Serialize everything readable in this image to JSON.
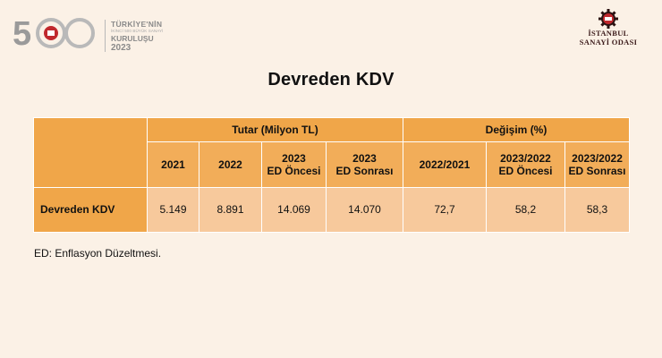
{
  "logo_left": {
    "number": "500",
    "line1": "TÜRKİYE'NİN",
    "line2": "İKİNCİ 500 BÜYÜK SANAYİ",
    "line3": "KURULUŞU",
    "year": "2023",
    "color": "#8a8a8a"
  },
  "logo_right": {
    "mark": "İSO",
    "name_line1": "İSTANBUL",
    "name_line2": "SANAYİ ODASI",
    "color": "#c0282d"
  },
  "title": "Devreden KDV",
  "table": {
    "group_headers": {
      "amount": "Tutar (Milyon TL)",
      "change": "Değişim (%)"
    },
    "columns": [
      {
        "l1": "2021",
        "l2": ""
      },
      {
        "l1": "2022",
        "l2": ""
      },
      {
        "l1": "2023",
        "l2": "ED Öncesi"
      },
      {
        "l1": "2023",
        "l2": "ED Sonrası"
      },
      {
        "l1": "2022/2021",
        "l2": ""
      },
      {
        "l1": "2023/2022",
        "l2": "ED Öncesi"
      },
      {
        "l1": "2023/2022",
        "l2": "ED Sonrası"
      }
    ],
    "row": {
      "label": "Devreden KDV",
      "values": [
        "5.149",
        "8.891",
        "14.069",
        "14.070",
        "72,7",
        "58,2",
        "58,3"
      ]
    },
    "colors": {
      "header": "#f0a649",
      "data": "#f7c99c"
    }
  },
  "note": "ED: Enflasyon Düzeltmesi.",
  "background": "#fbf1e6"
}
